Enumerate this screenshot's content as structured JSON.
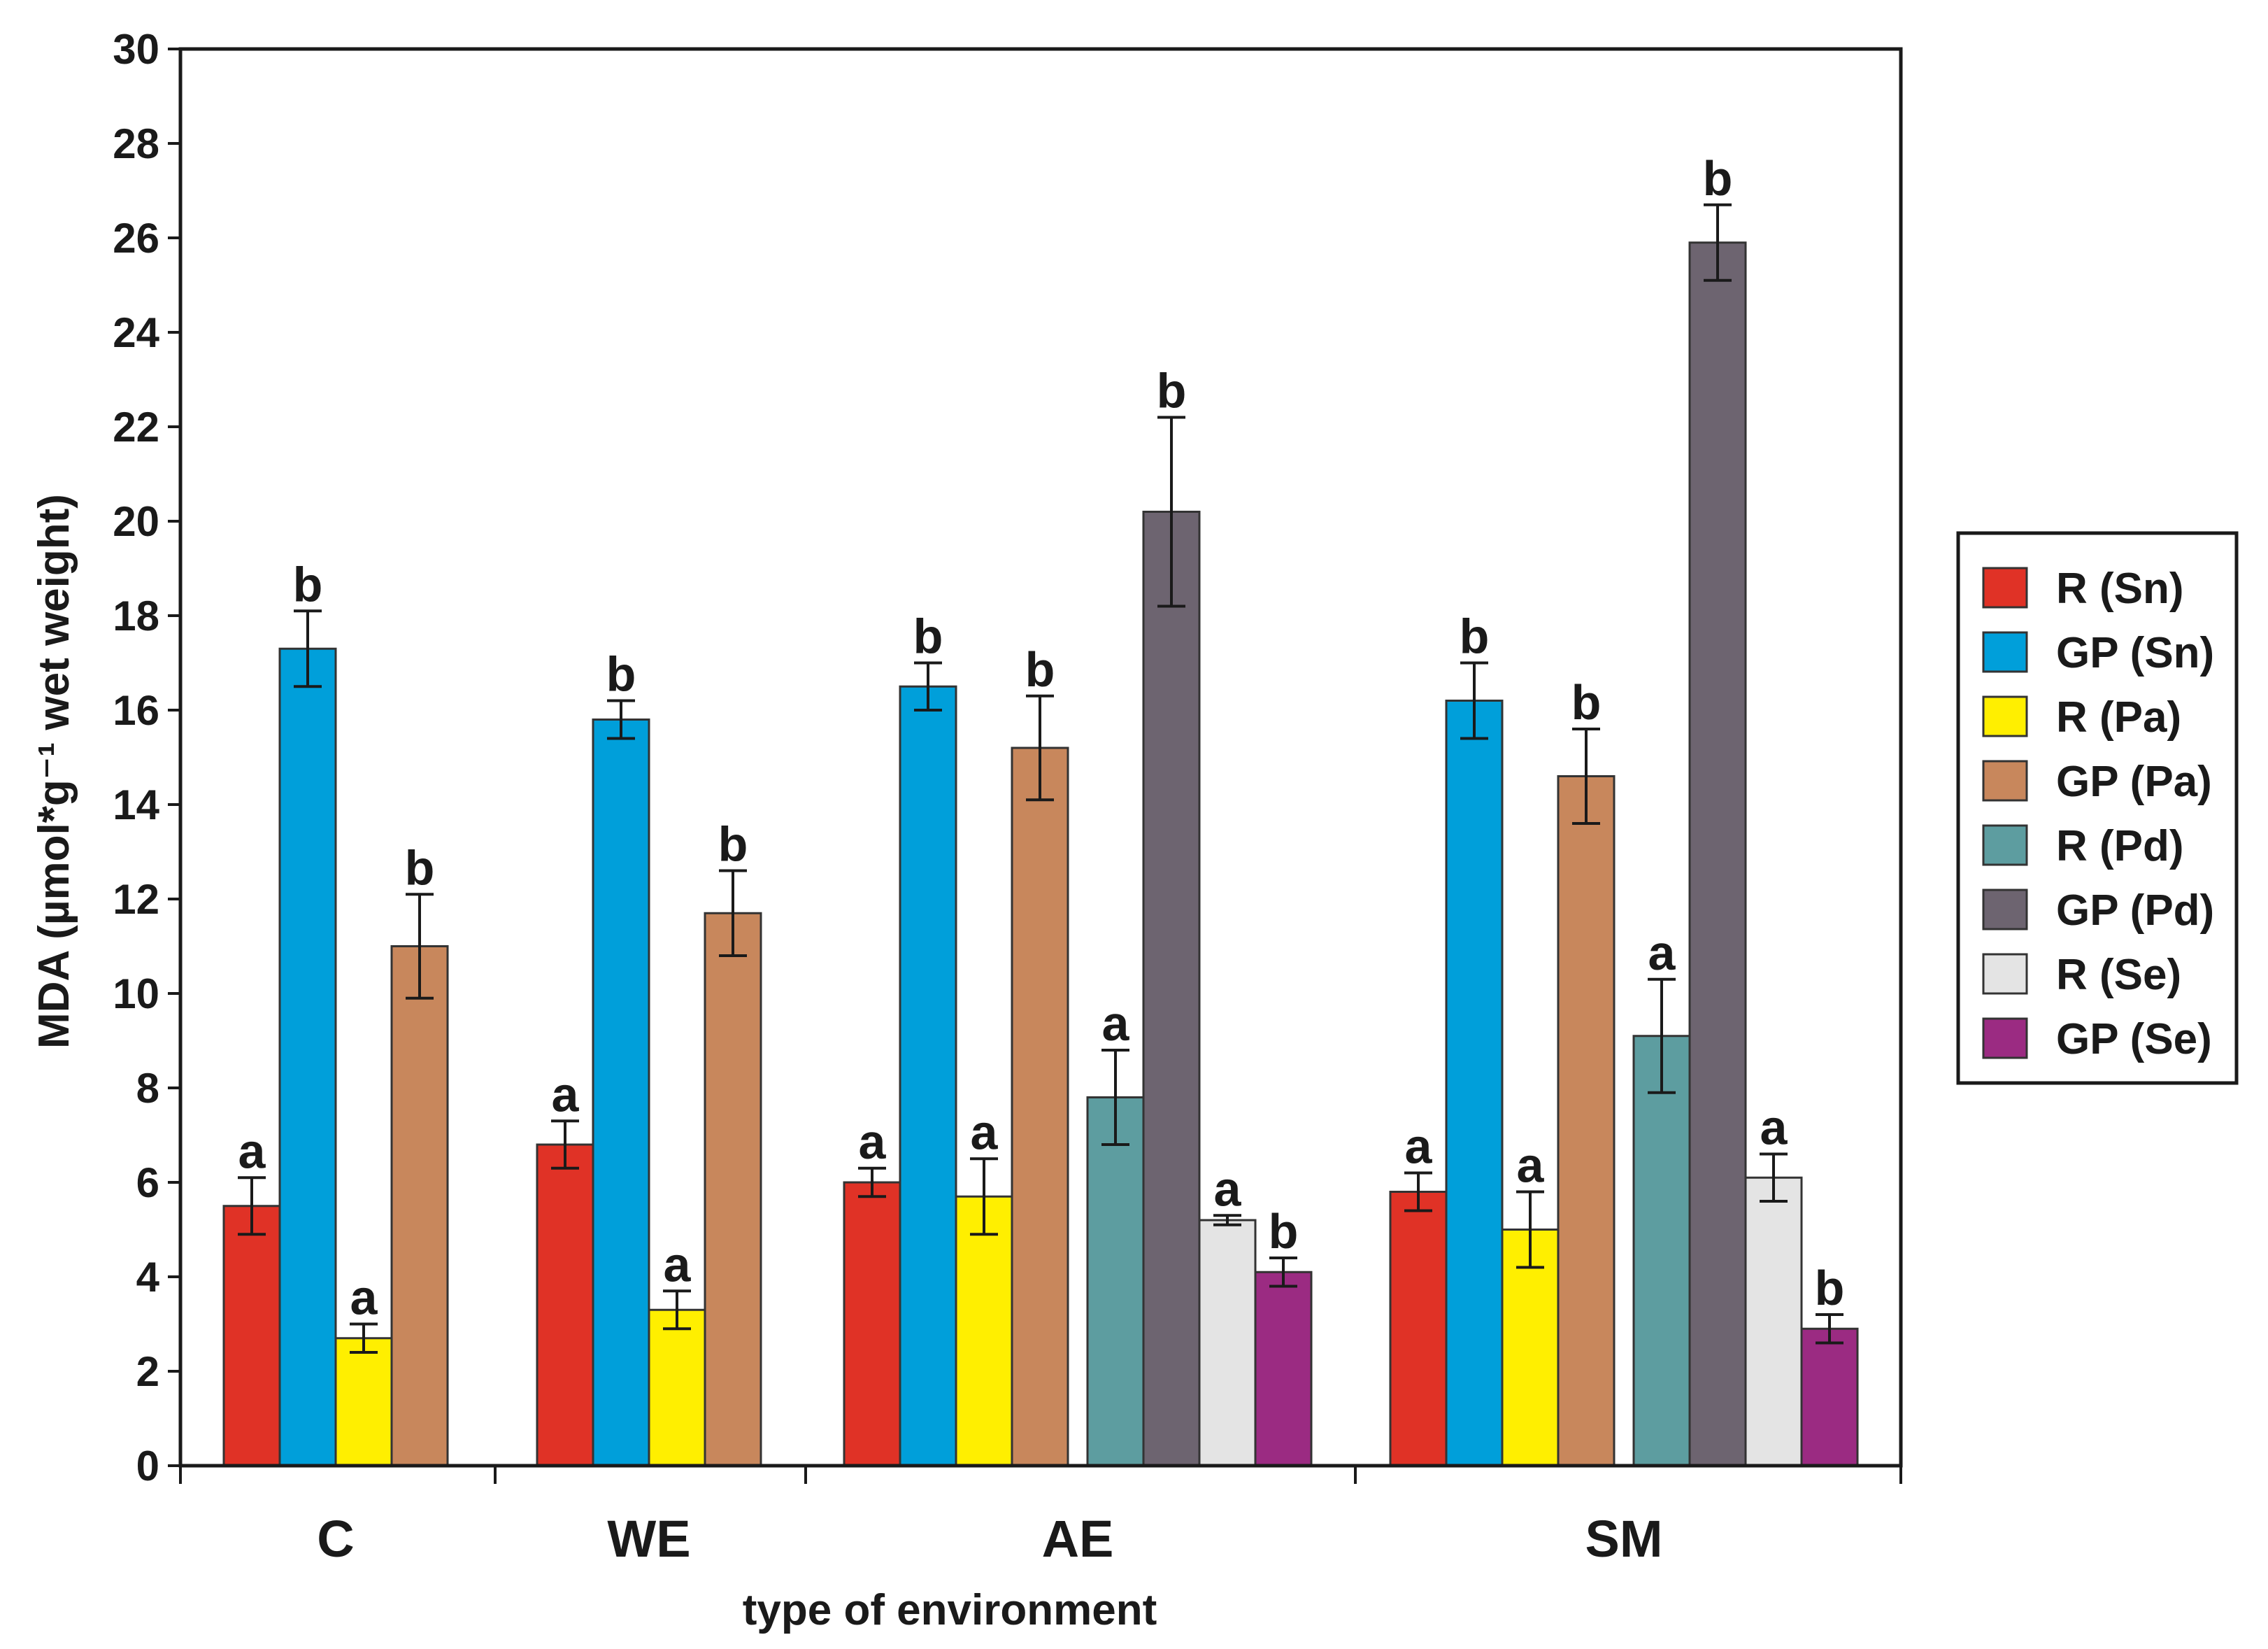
{
  "chart_data": {
    "type": "bar",
    "title": "",
    "xlabel": "type of environment",
    "ylabel": "MDA (µmol*g⁻¹ wet weight)",
    "ylim": [
      0,
      30
    ],
    "yticks": [
      0,
      2,
      4,
      6,
      8,
      10,
      12,
      14,
      16,
      18,
      20,
      22,
      24,
      26,
      28,
      30
    ],
    "grid": false,
    "legend_position": "right",
    "categories": [
      "C",
      "WE",
      "AE",
      "SM"
    ],
    "series": [
      {
        "name": "R (Sn)",
        "color": "#e03226",
        "values": [
          5.5,
          6.8,
          6.0,
          5.8
        ],
        "errors": [
          0.6,
          0.5,
          0.3,
          0.4
        ],
        "labels": [
          "a",
          "a",
          "a",
          "a"
        ]
      },
      {
        "name": "GP (Sn)",
        "color": "#009fda",
        "values": [
          17.3,
          15.8,
          16.5,
          16.2
        ],
        "errors": [
          0.8,
          0.4,
          0.5,
          0.8
        ],
        "labels": [
          "b",
          "b",
          "b",
          "b"
        ]
      },
      {
        "name": "R (Pa)",
        "color": "#ffef00",
        "values": [
          2.7,
          3.3,
          5.7,
          5.0
        ],
        "errors": [
          0.3,
          0.4,
          0.8,
          0.8
        ],
        "labels": [
          "a",
          "a",
          "a",
          "a"
        ]
      },
      {
        "name": "GP (Pa)",
        "color": "#c8875c",
        "values": [
          11.0,
          11.7,
          15.2,
          14.6
        ],
        "errors": [
          1.1,
          0.9,
          1.1,
          1.0
        ],
        "labels": [
          "b",
          "b",
          "b",
          "b"
        ]
      },
      {
        "name": "R (Pd)",
        "color": "#5d9da0",
        "values": [
          null,
          null,
          7.8,
          9.1
        ],
        "errors": [
          null,
          null,
          1.0,
          1.2
        ],
        "labels": [
          null,
          null,
          "a",
          "a"
        ]
      },
      {
        "name": "GP (Pd)",
        "color": "#6d6470",
        "values": [
          null,
          null,
          20.2,
          25.9
        ],
        "errors": [
          null,
          null,
          2.0,
          0.8
        ],
        "labels": [
          null,
          null,
          "b",
          "b"
        ]
      },
      {
        "name": "R (Se)",
        "color": "#e4e4e4",
        "values": [
          null,
          null,
          5.2,
          6.1
        ],
        "errors": [
          null,
          null,
          0.1,
          0.5
        ],
        "labels": [
          null,
          null,
          "a",
          "a"
        ]
      },
      {
        "name": "GP (Se)",
        "color": "#9b2b82",
        "values": [
          null,
          null,
          4.1,
          2.9
        ],
        "errors": [
          null,
          null,
          0.3,
          0.3
        ],
        "labels": [
          null,
          null,
          "b",
          "b"
        ]
      }
    ]
  }
}
